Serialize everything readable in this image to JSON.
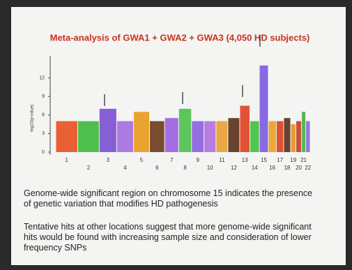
{
  "chart_data": {
    "type": "manhattan",
    "title": "Meta-analysis of  GWA1 + GWA2 + GWA3 (4,050 HD subjects)",
    "y_label": "-log10(p-value)",
    "categories": [
      "1",
      "2",
      "3",
      "4",
      "5",
      "6",
      "7",
      "8",
      "9",
      "10",
      "11",
      "12",
      "13",
      "14",
      "15",
      "16",
      "17",
      "18",
      "19",
      "20",
      "21",
      "22"
    ],
    "values": [
      5,
      5,
      7,
      5,
      6.5,
      5,
      5.5,
      7,
      5,
      5,
      5,
      5.5,
      7.5,
      5,
      14,
      5,
      5,
      5.5,
      4.5,
      5,
      6.5,
      5
    ],
    "colors": [
      "#e8501f",
      "#3cb93c",
      "#7b4fd0",
      "#a36ee0",
      "#e89a1a",
      "#6b3a1a",
      "#9b5fe0",
      "#4cc04c",
      "#8860e0",
      "#b070e0",
      "#e8a030",
      "#5a3018",
      "#e04020",
      "#40c040",
      "#7b5ae0",
      "#e8a020",
      "#d84020",
      "#5a3018",
      "#e89020",
      "#c04020",
      "#40b040",
      "#8a6ad8"
    ],
    "ylim": [
      0,
      15
    ],
    "yticks": [
      0,
      3,
      6,
      9,
      12
    ]
  },
  "notes": [
    "Genome-wide significant region on chromosome 15 indicates the presence of genetic variation that modifies HD pathogenesis",
    "Tentative hits at other locations suggest that more genome-wide significant hits would be found with increasing sample size and consideration of lower frequency SNPs"
  ]
}
